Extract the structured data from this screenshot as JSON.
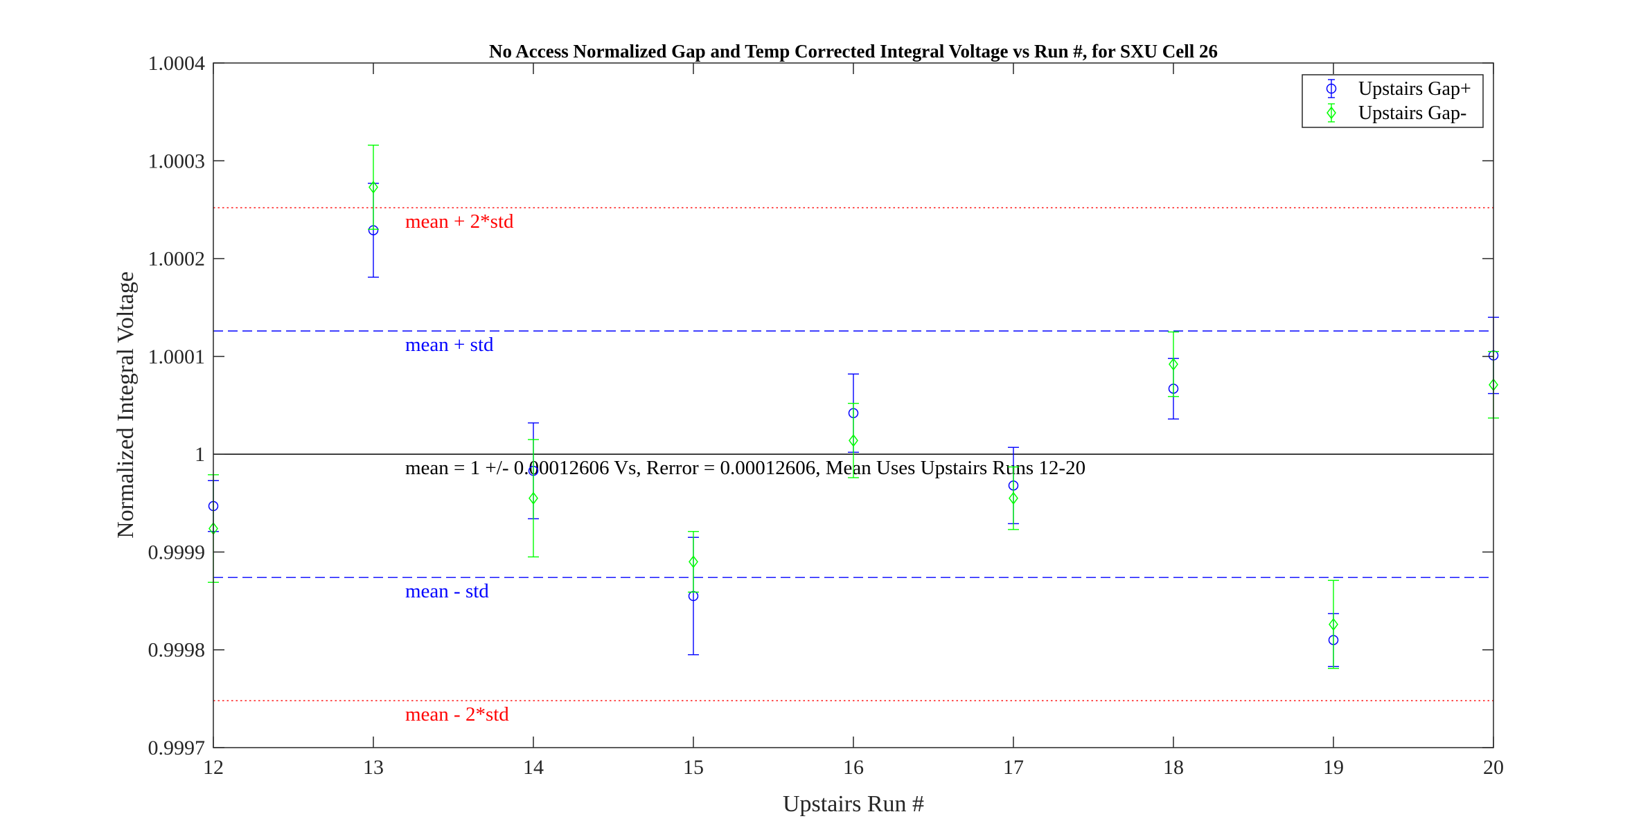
{
  "chart_data": {
    "type": "scatter",
    "title": "No Access Normalized Gap and Temp Corrected Integral Voltage vs Run #, for SXU Cell 26",
    "xlabel": "Upstairs Run #",
    "ylabel": "Normalized Integral Voltage",
    "xlim": [
      12,
      20
    ],
    "ylim": [
      0.9997,
      1.0004
    ],
    "xticks": [
      "12",
      "13",
      "14",
      "15",
      "16",
      "17",
      "18",
      "19",
      "20"
    ],
    "yticks": [
      "0.9997",
      "0.9998",
      "0.9999",
      "1",
      "1.0001",
      "1.0002",
      "1.0003",
      "1.0004"
    ],
    "legend_position": "top-right",
    "series": [
      {
        "name": "Upstairs Gap+",
        "color": "#0000ff",
        "marker": "circle",
        "x": [
          12,
          13,
          14,
          15,
          16,
          17,
          18,
          19,
          20
        ],
        "y": [
          0.999947,
          1.000229,
          0.999983,
          0.999855,
          1.000042,
          0.999968,
          1.000067,
          0.99981,
          1.000101
        ],
        "error": [
          2.6e-05,
          4.8e-05,
          4.9e-05,
          6e-05,
          4e-05,
          3.9e-05,
          3.1e-05,
          2.7e-05,
          3.9e-05
        ]
      },
      {
        "name": "Upstairs Gap-",
        "color": "#00ff00",
        "marker": "diamond",
        "x": [
          12,
          13,
          14,
          15,
          16,
          17,
          18,
          19,
          20
        ],
        "y": [
          0.999924,
          1.000273,
          0.999955,
          0.99989,
          1.000014,
          0.999955,
          1.000092,
          0.999826,
          1.000071
        ],
        "error": [
          5.5e-05,
          4.3e-05,
          6e-05,
          3.1e-05,
          3.8e-05,
          3.2e-05,
          3.3e-05,
          4.5e-05,
          3.4e-05
        ]
      }
    ],
    "reference_lines": [
      {
        "name": "mean",
        "value": 1.0,
        "style": "solid",
        "color": "#000000",
        "label": "mean = 1 +/- 0.00012606 Vs, Rerror = 0.00012606, Mean Uses Upstairs Runs 12-20"
      },
      {
        "name": "mean-plus-std",
        "value": 1.000126,
        "style": "dashed",
        "color": "#0000ff",
        "label": "mean + std"
      },
      {
        "name": "mean-minus-std",
        "value": 0.999874,
        "style": "dashed",
        "color": "#0000ff",
        "label": "mean - std"
      },
      {
        "name": "mean-plus-2std",
        "value": 1.000252,
        "style": "dotted",
        "color": "#ff0000",
        "label": "mean + 2*std"
      },
      {
        "name": "mean-minus-2std",
        "value": 0.999748,
        "style": "dotted",
        "color": "#ff0000",
        "label": "mean - 2*std"
      }
    ]
  }
}
